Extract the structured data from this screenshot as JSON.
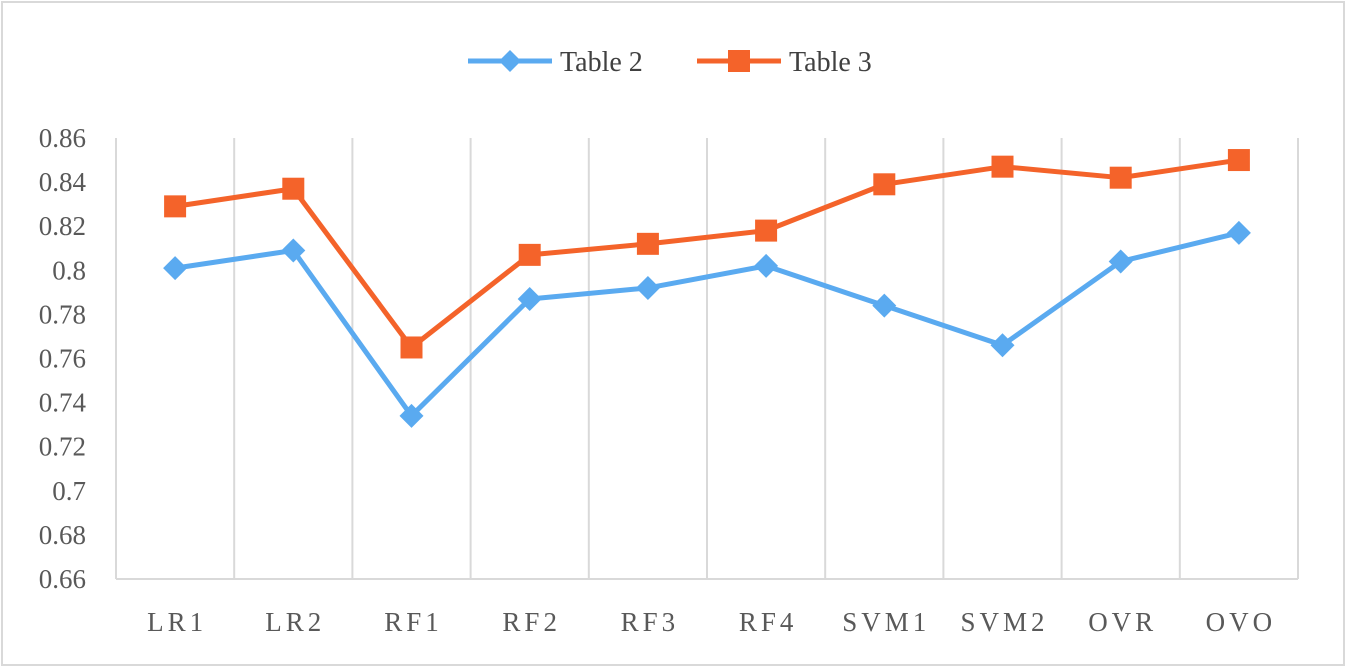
{
  "chart_data": {
    "type": "line",
    "title": "",
    "xlabel": "",
    "ylabel": "",
    "categories": [
      "LR1",
      "LR2",
      "RF1",
      "RF2",
      "RF3",
      "RF4",
      "SVM1",
      "SVM2",
      "OVR",
      "OVO"
    ],
    "ylim": [
      0.66,
      0.86
    ],
    "yticks": [
      "0.66",
      "0.68",
      "0.7",
      "0.72",
      "0.74",
      "0.76",
      "0.78",
      "0.8",
      "0.82",
      "0.84",
      "0.86"
    ],
    "grid": "vertical",
    "legend_position": "top-center",
    "series": [
      {
        "name": "Table 2",
        "color": "#5aaaf0",
        "marker": "diamond",
        "values": [
          0.801,
          0.809,
          0.734,
          0.787,
          0.792,
          0.802,
          0.784,
          0.766,
          0.804,
          0.817
        ]
      },
      {
        "name": "Table 3",
        "color": "#f4632a",
        "marker": "square",
        "values": [
          0.829,
          0.837,
          0.765,
          0.807,
          0.812,
          0.818,
          0.839,
          0.847,
          0.842,
          0.85
        ]
      }
    ]
  }
}
